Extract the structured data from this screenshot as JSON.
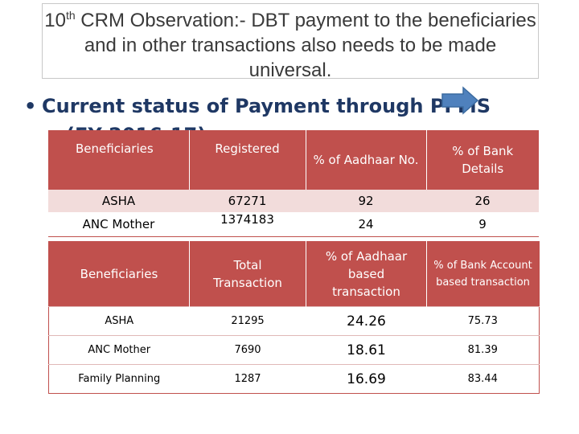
{
  "slide": {
    "title_prefix": "10",
    "title_sup": "th",
    "title_rest": " CRM Observation:- DBT payment to the beneficiaries and in other transactions also needs to be made universal.",
    "bullet": "Current status of Payment through PFMS",
    "bullet_cont": "(FY 2016-17)",
    "bullet_char": "•"
  },
  "table1": {
    "headers": [
      "Beneficiaries",
      "Registered",
      "% of Aadhaar No.",
      "% of Bank Details"
    ],
    "rows": [
      [
        "ASHA",
        "67271",
        "92",
        "26"
      ],
      [
        "ANC Mother",
        "1374183",
        "24",
        "9"
      ]
    ]
  },
  "table2": {
    "headers": [
      "Beneficiaries",
      "Total Transaction",
      "% of Aadhaar based transaction",
      "% of Bank Account based transaction"
    ],
    "rows": [
      [
        "ASHA",
        "21295",
        "24.26",
        "75.73"
      ],
      [
        "ANC Mother",
        "7690",
        "18.61",
        "81.39"
      ],
      [
        "Family Planning",
        "1287",
        "16.69",
        "83.44"
      ]
    ]
  },
  "colors": {
    "header_bg": "#c0504d",
    "row_tint": "#f2dcdb",
    "bullet_text": "#1f3864",
    "arrow": "#4f81bd"
  },
  "icons": {
    "arrow": "right-arrow-icon"
  }
}
